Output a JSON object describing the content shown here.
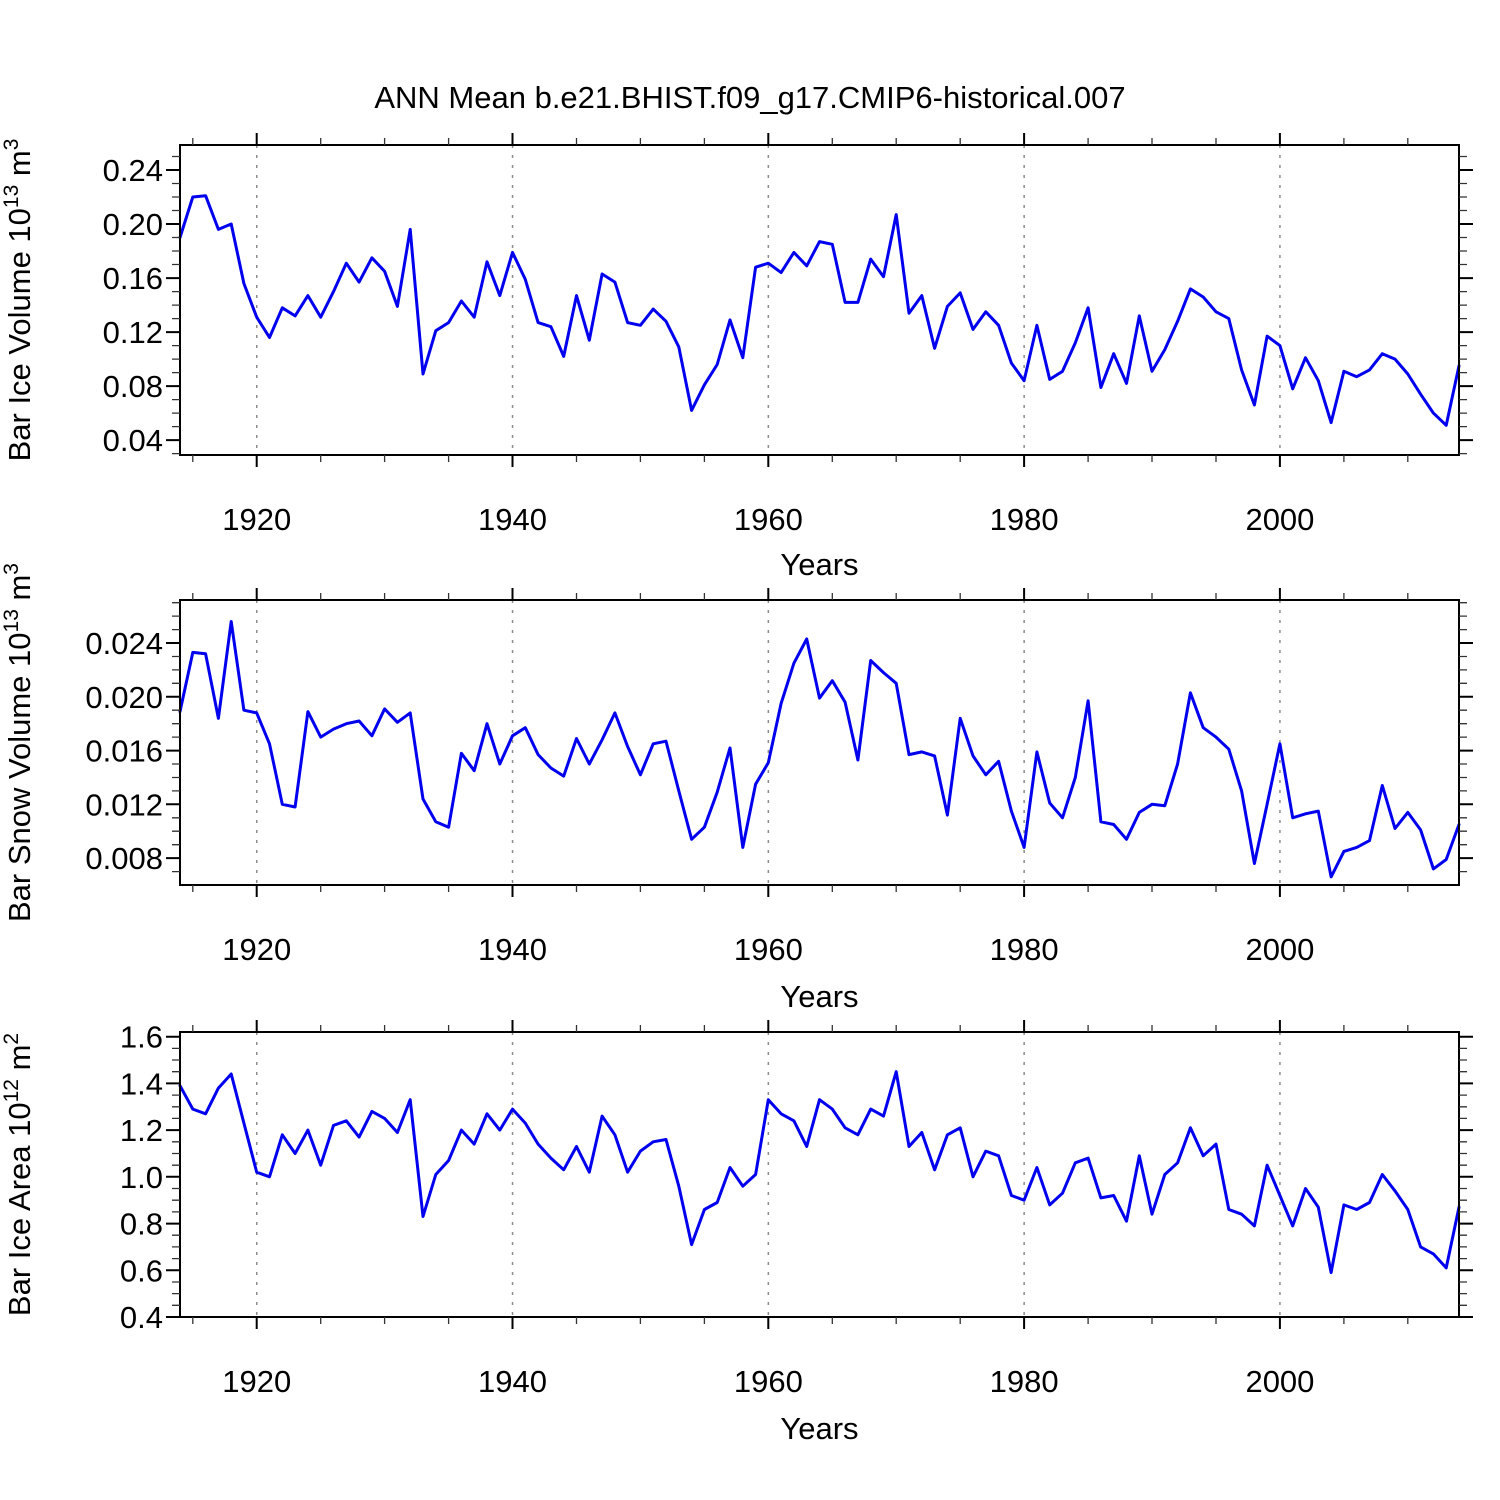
{
  "title": "ANN Mean b.e21.BHIST.f09_g17.CMIP6-historical.007",
  "accent_color": "#0000EE",
  "grid_color": "#8C8C8C",
  "frame_color": "#000000",
  "chart_data": [
    {
      "type": "line",
      "ylabel": "Bar Ice Volume 10^13 m^3",
      "ylabel_parts": [
        {
          "text": "Bar Ice Volume 10"
        },
        {
          "text": "13",
          "sup": true
        },
        {
          "text": " m"
        },
        {
          "text": "3",
          "sup": true
        }
      ],
      "xlabel": "Years",
      "legend": "none",
      "grid": "dashed-vertical-at-major-xticks",
      "xlim": [
        1914,
        2014
      ],
      "ylim": [
        0.029,
        0.2585
      ],
      "xticks_major": [
        1920,
        1940,
        1960,
        1980,
        2000
      ],
      "xminor_step": 5,
      "yticks": {
        "values": [
          0.04,
          0.08,
          0.12,
          0.16,
          0.2,
          0.24
        ],
        "labels": [
          "0.04",
          "0.08",
          "0.12",
          "0.16",
          "0.20",
          "0.24"
        ]
      },
      "yminor_step": 0.01,
      "x_start": 1914,
      "x_step": 1,
      "values": [
        0.19,
        0.22,
        0.221,
        0.196,
        0.2,
        0.156,
        0.131,
        0.116,
        0.138,
        0.132,
        0.147,
        0.131,
        0.15,
        0.171,
        0.157,
        0.175,
        0.165,
        0.139,
        0.196,
        0.089,
        0.121,
        0.127,
        0.143,
        0.131,
        0.172,
        0.147,
        0.179,
        0.159,
        0.127,
        0.124,
        0.102,
        0.147,
        0.114,
        0.163,
        0.157,
        0.127,
        0.125,
        0.137,
        0.128,
        0.109,
        0.062,
        0.081,
        0.096,
        0.129,
        0.101,
        0.168,
        0.171,
        0.164,
        0.179,
        0.169,
        0.187,
        0.185,
        0.142,
        0.142,
        0.174,
        0.161,
        0.207,
        0.134,
        0.147,
        0.108,
        0.139,
        0.149,
        0.122,
        0.135,
        0.125,
        0.097,
        0.084,
        0.125,
        0.085,
        0.091,
        0.112,
        0.138,
        0.079,
        0.104,
        0.082,
        0.132,
        0.091,
        0.107,
        0.128,
        0.152,
        0.146,
        0.135,
        0.13,
        0.092,
        0.066,
        0.117,
        0.11,
        0.078,
        0.101,
        0.084,
        0.053,
        0.091,
        0.087,
        0.092,
        0.104,
        0.1,
        0.089,
        0.074,
        0.06,
        0.051,
        0.095
      ]
    },
    {
      "type": "line",
      "ylabel": "Bar Snow Volume 10^13 m^3",
      "ylabel_parts": [
        {
          "text": "Bar Snow Volume 10"
        },
        {
          "text": "13",
          "sup": true
        },
        {
          "text": " m"
        },
        {
          "text": "3",
          "sup": true
        }
      ],
      "xlabel": "Years",
      "legend": "none",
      "grid": "dashed-vertical-at-major-xticks",
      "xlim": [
        1914,
        2014
      ],
      "ylim": [
        0.006,
        0.0272
      ],
      "xticks_major": [
        1920,
        1940,
        1960,
        1980,
        2000
      ],
      "xminor_step": 5,
      "yticks": {
        "values": [
          0.008,
          0.012,
          0.016,
          0.02,
          0.024
        ],
        "labels": [
          "0.008",
          "0.012",
          "0.016",
          "0.020",
          "0.024"
        ]
      },
      "yminor_step": 0.001,
      "x_start": 1914,
      "x_step": 1,
      "values": [
        0.0189,
        0.0233,
        0.0232,
        0.0184,
        0.0256,
        0.019,
        0.0188,
        0.0165,
        0.012,
        0.0118,
        0.0189,
        0.017,
        0.0176,
        0.018,
        0.0182,
        0.0171,
        0.0191,
        0.0181,
        0.0188,
        0.0124,
        0.0107,
        0.0103,
        0.0158,
        0.0145,
        0.018,
        0.015,
        0.0171,
        0.0177,
        0.0157,
        0.0147,
        0.0141,
        0.0169,
        0.015,
        0.0168,
        0.0188,
        0.0163,
        0.0142,
        0.0165,
        0.0167,
        0.013,
        0.0094,
        0.0103,
        0.0129,
        0.0162,
        0.0088,
        0.0135,
        0.0151,
        0.0195,
        0.0225,
        0.0243,
        0.0199,
        0.0212,
        0.0196,
        0.0153,
        0.0227,
        0.0218,
        0.021,
        0.0157,
        0.0159,
        0.0156,
        0.0112,
        0.0184,
        0.0156,
        0.0142,
        0.0152,
        0.0115,
        0.0088,
        0.0159,
        0.0121,
        0.011,
        0.014,
        0.0197,
        0.0107,
        0.0105,
        0.0094,
        0.0114,
        0.012,
        0.0119,
        0.015,
        0.0203,
        0.0177,
        0.017,
        0.0161,
        0.013,
        0.0076,
        0.012,
        0.0165,
        0.011,
        0.0113,
        0.0115,
        0.0066,
        0.0085,
        0.0088,
        0.0093,
        0.0134,
        0.0102,
        0.0114,
        0.0101,
        0.0072,
        0.0079,
        0.0105
      ]
    },
    {
      "type": "line",
      "ylabel": "Bar Ice Area 10^12 m^2",
      "ylabel_parts": [
        {
          "text": "Bar Ice Area 10"
        },
        {
          "text": "12",
          "sup": true
        },
        {
          "text": " m"
        },
        {
          "text": "2",
          "sup": true
        }
      ],
      "xlabel": "Years",
      "legend": "none",
      "grid": "dashed-vertical-at-major-xticks",
      "xlim": [
        1914,
        2014
      ],
      "ylim": [
        0.4,
        1.62
      ],
      "xticks_major": [
        1920,
        1940,
        1960,
        1980,
        2000
      ],
      "xminor_step": 5,
      "yticks": {
        "values": [
          0.4,
          0.6,
          0.8,
          1.0,
          1.2,
          1.4,
          1.6
        ],
        "labels": [
          "0.4",
          "0.6",
          "0.8",
          "1.0",
          "1.2",
          "1.4",
          "1.6"
        ]
      },
      "yminor_step": 0.05,
      "x_start": 1914,
      "x_step": 1,
      "values": [
        1.39,
        1.29,
        1.27,
        1.38,
        1.44,
        1.23,
        1.02,
        1.0,
        1.18,
        1.1,
        1.2,
        1.05,
        1.22,
        1.24,
        1.17,
        1.28,
        1.25,
        1.19,
        1.33,
        0.83,
        1.01,
        1.07,
        1.2,
        1.14,
        1.27,
        1.2,
        1.29,
        1.23,
        1.14,
        1.08,
        1.03,
        1.13,
        1.02,
        1.26,
        1.18,
        1.02,
        1.11,
        1.15,
        1.16,
        0.96,
        0.71,
        0.86,
        0.89,
        1.04,
        0.96,
        1.01,
        1.33,
        1.27,
        1.24,
        1.13,
        1.33,
        1.29,
        1.21,
        1.18,
        1.29,
        1.26,
        1.45,
        1.13,
        1.19,
        1.03,
        1.18,
        1.21,
        1.0,
        1.11,
        1.09,
        0.92,
        0.9,
        1.04,
        0.88,
        0.93,
        1.06,
        1.08,
        0.91,
        0.92,
        0.81,
        1.09,
        0.84,
        1.01,
        1.06,
        1.21,
        1.09,
        1.14,
        0.86,
        0.84,
        0.79,
        1.05,
        0.92,
        0.79,
        0.95,
        0.87,
        0.59,
        0.88,
        0.86,
        0.89,
        1.01,
        0.94,
        0.86,
        0.7,
        0.67,
        0.61,
        0.87
      ]
    }
  ]
}
